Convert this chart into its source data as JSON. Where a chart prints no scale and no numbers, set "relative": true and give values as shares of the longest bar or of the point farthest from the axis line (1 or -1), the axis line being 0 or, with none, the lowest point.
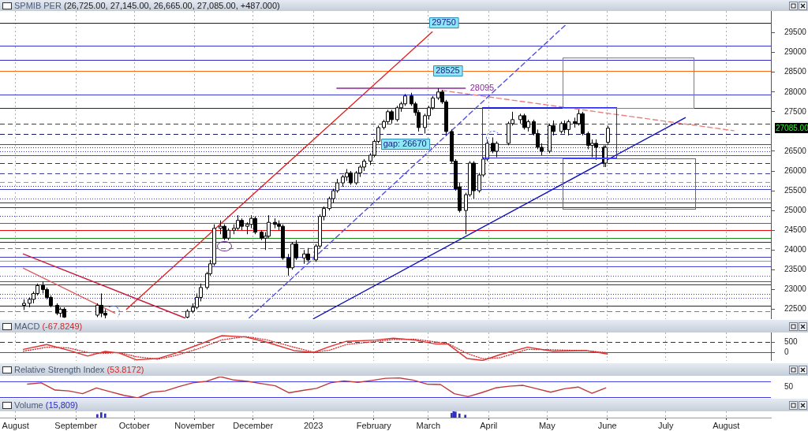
{
  "chart_data": [
    {
      "type": "candlestick",
      "title": "SPMIB PER (26,725.00, 27,145.00, 26,665.00, 27,085.00, +487.000)",
      "x": [
        "2022-08-05",
        "2022-08-08",
        "2022-08-10",
        "2022-08-12",
        "2022-08-15",
        "2022-08-17",
        "2022-08-19",
        "2022-08-22",
        "2022-08-24",
        "2022-08-26",
        "2022-09-12",
        "2022-09-14",
        "2022-09-16",
        "2022-10-28",
        "2022-10-31",
        "2022-11-02",
        "2022-11-04",
        "2022-11-07",
        "2022-11-09",
        "2022-11-11",
        "2022-11-14",
        "2022-11-16",
        "2022-11-18",
        "2022-11-21",
        "2022-11-23",
        "2022-11-25",
        "2022-11-28",
        "2022-11-30",
        "2022-12-02",
        "2022-12-05",
        "2022-12-07",
        "2022-12-09",
        "2022-12-12",
        "2022-12-14",
        "2022-12-16",
        "2022-12-19",
        "2022-12-21",
        "2022-12-23",
        "2022-12-27",
        "2022-12-29",
        "2023-01-02",
        "2023-01-04",
        "2023-01-06",
        "2023-01-09",
        "2023-01-11",
        "2023-01-13",
        "2023-01-16",
        "2023-01-18",
        "2023-01-20",
        "2023-01-23",
        "2023-01-25",
        "2023-01-27",
        "2023-01-30",
        "2023-02-01",
        "2023-02-03",
        "2023-02-06",
        "2023-02-08",
        "2023-02-10",
        "2023-02-13",
        "2023-02-15",
        "2023-02-17",
        "2023-02-20",
        "2023-02-22",
        "2023-02-24",
        "2023-02-27",
        "2023-03-01",
        "2023-03-03",
        "2023-03-06",
        "2023-03-08",
        "2023-03-10",
        "2023-03-13",
        "2023-03-15",
        "2023-03-17",
        "2023-03-20",
        "2023-03-22",
        "2023-03-24",
        "2023-03-27",
        "2023-03-29",
        "2023-03-31",
        "2023-04-03",
        "2023-04-05",
        "2023-04-11",
        "2023-04-13",
        "2023-04-17",
        "2023-04-19",
        "2023-04-21",
        "2023-04-24",
        "2023-04-26",
        "2023-04-28",
        "2023-05-02",
        "2023-05-04",
        "2023-05-08",
        "2023-05-10",
        "2023-05-12",
        "2023-05-15",
        "2023-05-17",
        "2023-05-19",
        "2023-05-22",
        "2023-05-24",
        "2023-05-26",
        "2023-05-30",
        "2023-05-31",
        "2023-06-01"
      ],
      "ohlc": [
        [
          22600,
          22750,
          22480,
          22650
        ],
        [
          22650,
          22800,
          22550,
          22750
        ],
        [
          22750,
          22950,
          22650,
          22900
        ],
        [
          22900,
          23150,
          22850,
          23100
        ],
        [
          23100,
          23200,
          22900,
          23000
        ],
        [
          23000,
          23050,
          22750,
          22800
        ],
        [
          22800,
          22850,
          22550,
          22600
        ],
        [
          22600,
          22650,
          22350,
          22400
        ],
        [
          22400,
          22550,
          22300,
          22500
        ],
        [
          22500,
          22550,
          22280,
          22300
        ],
        [
          22350,
          22650,
          22300,
          22600
        ],
        [
          22600,
          22900,
          22300,
          22400
        ],
        [
          22400,
          22500,
          22270,
          22350
        ],
        [
          22300,
          22500,
          22270,
          22450
        ],
        [
          22450,
          22650,
          22400,
          22550
        ],
        [
          22550,
          22900,
          22500,
          22800
        ],
        [
          22800,
          23150,
          22700,
          23050
        ],
        [
          23050,
          23450,
          23000,
          23400
        ],
        [
          23400,
          23750,
          23350,
          23650
        ],
        [
          23650,
          24650,
          23600,
          24550
        ],
        [
          24550,
          24750,
          24400,
          24600
        ],
        [
          24600,
          24650,
          24250,
          24300
        ],
        [
          24300,
          24550,
          24250,
          24500
        ],
        [
          24500,
          24650,
          24400,
          24550
        ],
        [
          24550,
          24880,
          24500,
          24750
        ],
        [
          24750,
          24800,
          24500,
          24600
        ],
        [
          24600,
          24700,
          24400,
          24650
        ],
        [
          24650,
          24880,
          24550,
          24800
        ],
        [
          24800,
          24850,
          24400,
          24450
        ],
        [
          24450,
          24500,
          24250,
          24300
        ],
        [
          24300,
          24450,
          24000,
          24350
        ],
        [
          24350,
          24880,
          24300,
          24700
        ],
        [
          24700,
          24800,
          24550,
          24650
        ],
        [
          24650,
          24750,
          24500,
          24600
        ],
        [
          24600,
          24650,
          23750,
          23800
        ],
        [
          23800,
          23900,
          23350,
          23550
        ],
        [
          23550,
          24200,
          23500,
          24150
        ],
        [
          24150,
          24250,
          23750,
          23800
        ],
        [
          23800,
          24000,
          23650,
          23900
        ],
        [
          23900,
          24050,
          23700,
          23750
        ],
        [
          23750,
          24150,
          23700,
          24100
        ],
        [
          24100,
          24900,
          24050,
          24850
        ],
        [
          24850,
          25100,
          24750,
          25050
        ],
        [
          25050,
          25350,
          25000,
          25300
        ],
        [
          25300,
          25550,
          25200,
          25500
        ],
        [
          25500,
          25800,
          25450,
          25700
        ],
        [
          25700,
          25900,
          25600,
          25850
        ],
        [
          25850,
          26050,
          25750,
          25950
        ],
        [
          25950,
          26000,
          25650,
          25700
        ],
        [
          25700,
          26000,
          25650,
          25950
        ],
        [
          25950,
          26150,
          25850,
          26100
        ],
        [
          26100,
          26300,
          26000,
          26250
        ],
        [
          26250,
          26450,
          26150,
          26400
        ],
        [
          26400,
          26800,
          26350,
          26750
        ],
        [
          26750,
          27150,
          26700,
          27100
        ],
        [
          27100,
          27300,
          27050,
          27250
        ],
        [
          27250,
          27550,
          27200,
          27500
        ],
        [
          27500,
          27550,
          27200,
          27300
        ],
        [
          27300,
          27650,
          27250,
          27600
        ],
        [
          27600,
          27750,
          27500,
          27700
        ],
        [
          27700,
          27950,
          27650,
          27900
        ],
        [
          27900,
          27980,
          27650,
          27700
        ],
        [
          27700,
          27750,
          27400,
          27480
        ],
        [
          27480,
          27550,
          27000,
          27100
        ],
        [
          27100,
          27450,
          26950,
          27400
        ],
        [
          27400,
          27650,
          27300,
          27600
        ],
        [
          27600,
          27900,
          27550,
          27850
        ],
        [
          27850,
          28095,
          27800,
          28000
        ],
        [
          28000,
          28050,
          27700,
          27750
        ],
        [
          27750,
          27800,
          26900,
          27000
        ],
        [
          27000,
          27050,
          26200,
          26250
        ],
        [
          26250,
          26300,
          25500,
          25550
        ],
        [
          25600,
          25700,
          24950,
          25000
        ],
        [
          25000,
          25450,
          24400,
          25400
        ],
        [
          25400,
          26250,
          25350,
          26200
        ],
        [
          26200,
          26250,
          25300,
          25500
        ],
        [
          25500,
          25950,
          25450,
          25900
        ],
        [
          25900,
          26350,
          25850,
          26300
        ],
        [
          26300,
          26800,
          26250,
          26700
        ],
        [
          26700,
          26850,
          26450,
          26500
        ],
        [
          26500,
          26750,
          26350,
          26700
        ],
        [
          26700,
          27250,
          26650,
          27200
        ],
        [
          27200,
          27500,
          27150,
          27300
        ],
        [
          27300,
          27450,
          27200,
          27400
        ],
        [
          27400,
          27450,
          27050,
          27100
        ],
        [
          27100,
          27300,
          27000,
          27250
        ],
        [
          27250,
          27300,
          26900,
          26950
        ],
        [
          26950,
          27050,
          26550,
          26600
        ],
        [
          26600,
          26700,
          26400,
          26500
        ],
        [
          26500,
          27200,
          26450,
          27150
        ],
        [
          27150,
          27280,
          26900,
          27000
        ],
        [
          27000,
          27250,
          26950,
          27200
        ],
        [
          27200,
          27280,
          26950,
          27050
        ],
        [
          27050,
          27300,
          26900,
          27250
        ],
        [
          27250,
          27350,
          27100,
          27200
        ],
        [
          27200,
          27550,
          27150,
          27450
        ],
        [
          27450,
          27500,
          26900,
          26950
        ],
        [
          26950,
          27000,
          26550,
          26650
        ],
        [
          26650,
          26800,
          26350,
          26700
        ],
        [
          26700,
          26800,
          26280,
          26600
        ],
        [
          26600,
          26650,
          26100,
          26200
        ],
        [
          26200,
          26650,
          26100,
          26598
        ],
        [
          26725,
          27145,
          26665,
          27085
        ]
      ],
      "series": [
        {
          "type": "line",
          "color": "#e02020",
          "x": [
            "2022-09-27",
            "2023-03-03"
          ],
          "values": [
            22500,
            29520
          ]
        },
        {
          "type": "line",
          "color": "#c81c3c",
          "x": [
            "2022-08-05",
            "2022-10-27"
          ],
          "values": [
            23900,
            22280
          ]
        },
        {
          "type": "line",
          "color": "#e06060",
          "x": [
            "2022-08-05",
            "2022-09-21"
          ],
          "values": [
            23540,
            22400
          ]
        },
        {
          "type": "line",
          "color": "#5050e0",
          "line_style": "dashed",
          "x": [
            "2022-11-29",
            "2023-05-11"
          ],
          "values": [
            22280,
            29720
          ]
        },
        {
          "type": "line",
          "color": "#1010b8",
          "x": [
            "2023-01-01",
            "2023-07-11"
          ],
          "values": [
            22260,
            27350
          ]
        },
        {
          "type": "line",
          "color": "#e88080",
          "line_style": "dashed",
          "x": [
            "2023-03-08",
            "2023-08-05"
          ],
          "values": [
            28040,
            27020
          ]
        },
        {
          "type": "line",
          "name": "28095",
          "color": "#8a2a9a",
          "x": [
            "2023-01-13",
            "2023-03-20"
          ],
          "values": [
            28095,
            28095
          ]
        }
      ],
      "xlim": [
        "2022-07-24",
        "2023-08-24"
      ],
      "xticks": [
        {
          "value": "2022-08-01",
          "label": null
        },
        {
          "value": "2022-09-01",
          "label": null
        },
        {
          "value": "2022-10-01",
          "label": null
        },
        {
          "value": "2022-11-01",
          "label": null
        },
        {
          "value": "2022-12-01",
          "label": null
        },
        {
          "value": "2023-01-01",
          "label": null
        },
        {
          "value": "2023-02-01",
          "label": null
        },
        {
          "value": "2023-03-01",
          "label": null
        },
        {
          "value": "2023-04-01",
          "label": null
        },
        {
          "value": "2023-05-01",
          "label": null
        },
        {
          "value": "2023-06-01",
          "label": null
        },
        {
          "value": "2023-07-01",
          "label": null
        },
        {
          "value": "2023-08-01",
          "label": null
        }
      ],
      "ylim": [
        22250,
        30050
      ],
      "yticks": [
        22500,
        23000,
        23500,
        24000,
        24500,
        25000,
        25500,
        26000,
        26500,
        27500,
        28000,
        28500,
        29000,
        29500
      ],
      "tick_labels": "y",
      "grid": "x",
      "ref_lines": [
        {
          "axis": "y",
          "value": 29750,
          "color": "#1e1e1e"
        },
        {
          "axis": "y",
          "value": 29170,
          "color": "#3333cc"
        },
        {
          "axis": "y",
          "value": 28815,
          "color": "#2c2cc4"
        },
        {
          "axis": "y",
          "value": 28525,
          "color": "#ff6a1a"
        },
        {
          "axis": "y",
          "value": 27935,
          "color": "#3a3ad4"
        },
        {
          "axis": "y",
          "value": 27600,
          "color": "#4b0a5a"
        },
        {
          "axis": "y",
          "value": 27205,
          "color": "#3333aa",
          "line_style": "dashed"
        },
        {
          "axis": "y",
          "value": 26945,
          "color": "#1a1a66",
          "line_style": "dashed"
        },
        {
          "axis": "y",
          "value": 26670,
          "color": "#9a209a"
        },
        {
          "axis": "y",
          "value": 26590,
          "color": "#2c2ca4",
          "line_style": "dotted"
        },
        {
          "axis": "y",
          "value": 26505,
          "color": "#3a3ab2",
          "line_style": "dotted"
        },
        {
          "axis": "y",
          "value": 26390,
          "color": "#f81818"
        },
        {
          "axis": "y",
          "value": 26195,
          "color": "#2828c0",
          "line_style": "dashed"
        },
        {
          "axis": "y",
          "value": 25935,
          "color": "#40409a",
          "line_style": "dashed"
        },
        {
          "axis": "y",
          "value": 25720,
          "color": "#66bb66",
          "line_style": "dashed"
        },
        {
          "axis": "y",
          "value": 25620,
          "color": "#262698",
          "line_style": "dotted"
        },
        {
          "axis": "y",
          "value": 25540,
          "color": "#4242cc"
        },
        {
          "axis": "y",
          "value": 25305,
          "color": "#4848b8",
          "line_style": "dotted"
        },
        {
          "axis": "y",
          "value": 25200,
          "color": "#2424d8"
        },
        {
          "axis": "y",
          "value": 25080,
          "color": "#7a1a1a"
        },
        {
          "axis": "y",
          "value": 24860,
          "color": "#30308c",
          "line_style": "dotted"
        },
        {
          "axis": "y",
          "value": 24690,
          "color": "#d83030"
        },
        {
          "axis": "y",
          "value": 24505,
          "color": "#ee0a0a"
        },
        {
          "axis": "y",
          "value": 24305,
          "color": "#1a8a1a"
        },
        {
          "axis": "y",
          "value": 24205,
          "color": "#2e2e2e"
        },
        {
          "axis": "y",
          "value": 24045,
          "color": "#6666dd",
          "line_style": "dashed"
        },
        {
          "axis": "y",
          "value": 23825,
          "color": "#3c3cbc"
        },
        {
          "axis": "y",
          "value": 23720,
          "color": "#ff7722"
        },
        {
          "axis": "y",
          "value": 23595,
          "color": "#4646d8"
        },
        {
          "axis": "y",
          "value": 23355,
          "color": "#505090",
          "line_style": "dotted"
        },
        {
          "axis": "y",
          "value": 23205,
          "color": "#cc2a2a"
        },
        {
          "axis": "y",
          "value": 23125,
          "color": "#3a3a3a"
        },
        {
          "axis": "y",
          "value": 22895,
          "color": "#36369e",
          "line_style": "dotted"
        },
        {
          "axis": "y",
          "value": 22785,
          "color": "#4444a8",
          "line_style": "dotted"
        },
        {
          "axis": "y",
          "value": 22595,
          "color": "#262626"
        },
        {
          "axis": "y",
          "value": 22440,
          "color": "#7070e4",
          "line_style": "dashed"
        }
      ],
      "annotations": [
        {
          "text": "29750",
          "x": "2023-03-09",
          "y": 29750
        },
        {
          "text": "28525",
          "x": "2023-03-11",
          "y": 28525
        },
        {
          "text": "gap: 26670",
          "x": "2023-02-17",
          "y": 26670
        },
        "27085.00"
      ]
    },
    {
      "type": "line",
      "title": "MACD (-67.8249)",
      "series": [
        {
          "color": "#e03030",
          "x": [
            "2022-08-05",
            "2022-08-17",
            "2022-08-28",
            "2022-09-07",
            "2022-09-16",
            "2022-09-23",
            "2022-10-02",
            "2022-10-13",
            "2022-10-22",
            "2022-11-02",
            "2022-11-15",
            "2022-11-27",
            "2022-12-08",
            "2022-12-22",
            "2023-01-01",
            "2023-01-09",
            "2023-01-18",
            "2023-02-02",
            "2023-02-11",
            "2023-02-22",
            "2023-03-05",
            "2023-03-11",
            "2023-03-21",
            "2023-03-29",
            "2023-04-07",
            "2023-04-21",
            "2023-05-04",
            "2023-05-21",
            "2023-06-01"
          ],
          "values": [
            150,
            380,
            110,
            -170,
            50,
            -20,
            -350,
            -290,
            -40,
            340,
            800,
            740,
            490,
            90,
            0,
            270,
            530,
            590,
            680,
            590,
            400,
            400,
            -290,
            -380,
            -100,
            250,
            60,
            90,
            -70
          ]
        },
        {
          "color": "#d83838",
          "line_style": "dotted",
          "x": [
            "2022-08-05",
            "2022-08-17",
            "2022-08-28",
            "2022-09-07",
            "2022-09-16",
            "2022-09-23",
            "2022-10-02",
            "2022-10-13",
            "2022-10-22",
            "2022-11-02",
            "2022-11-15",
            "2022-11-27",
            "2022-12-08",
            "2022-12-22",
            "2023-01-01",
            "2023-01-09",
            "2023-01-18",
            "2023-02-02",
            "2023-02-11",
            "2023-02-22",
            "2023-03-05",
            "2023-03-11",
            "2023-03-21",
            "2023-03-29",
            "2023-04-07",
            "2023-04-21",
            "2023-05-04",
            "2023-05-21",
            "2023-06-01"
          ],
          "values": [
            60,
            250,
            220,
            0,
            -40,
            0,
            -200,
            -320,
            -150,
            150,
            600,
            760,
            600,
            250,
            20,
            100,
            380,
            520,
            620,
            630,
            500,
            430,
            -50,
            -300,
            -250,
            150,
            130,
            80,
            -10
          ]
        }
      ],
      "xlim": [
        "2022-07-24",
        "2023-08-24"
      ],
      "xticks": [
        {
          "value": "2022-08-01",
          "label": null
        },
        {
          "value": "2022-09-01",
          "label": null
        },
        {
          "value": "2022-10-01",
          "label": null
        },
        {
          "value": "2022-11-01",
          "label": null
        },
        {
          "value": "2022-12-01",
          "label": null
        },
        {
          "value": "2023-01-01",
          "label": null
        },
        {
          "value": "2023-02-01",
          "label": null
        },
        {
          "value": "2023-03-01",
          "label": null
        },
        {
          "value": "2023-04-01",
          "label": null
        },
        {
          "value": "2023-05-01",
          "label": null
        },
        {
          "value": "2023-06-01",
          "label": null
        },
        {
          "value": "2023-07-01",
          "label": null
        },
        {
          "value": "2023-08-01",
          "label": null
        }
      ],
      "ylim": [
        -400,
        950
      ],
      "yticks": [
        0,
        500
      ],
      "tick_labels": "y",
      "grid": "x",
      "ref_lines": [
        {
          "axis": "y",
          "value": 500,
          "color": "#333333",
          "line_style": "dashed"
        },
        {
          "axis": "y",
          "value": 0,
          "color": "#4444ee"
        }
      ]
    },
    {
      "type": "line",
      "title": "Relative Strength Index (53.8172)",
      "relative": true,
      "categories": [
        null,
        null,
        null,
        null,
        null,
        null,
        null,
        null,
        null,
        null,
        null,
        null,
        null,
        null,
        null,
        null,
        null,
        null,
        null,
        null,
        null,
        null,
        null,
        null,
        null,
        null,
        null,
        null,
        null,
        null,
        null,
        null,
        null,
        null,
        null,
        null,
        null,
        null,
        null,
        null,
        null,
        null,
        null,
        null,
        null,
        null,
        null,
        null,
        null,
        null,
        null,
        null,
        null,
        null,
        null,
        null,
        null
      ],
      "series": [
        {
          "color": "#c03838",
          "values": [
            null,
            null,
            0.65,
            0.71,
            0.37,
            0.33,
            0.2,
            0.47,
            0.29,
            0.12,
            0,
            0.27,
            0.33,
            0.53,
            0.71,
            0.78,
            1,
            0.84,
            0.78,
            0.67,
            0.57,
            0.24,
            0.35,
            0.45,
            0.71,
            0.8,
            0.73,
            0.82,
            0.92,
            0.94,
            0.84,
            0.65,
            0.63,
            0.2,
            0.06,
            0.25,
            0.47,
            0.55,
            0.59,
            0.43,
            0.27,
            0.43,
            0.51,
            0.22,
            0.47,
            null,
            null,
            null,
            null,
            null,
            null,
            null,
            null,
            null,
            null,
            null,
            null
          ]
        }
      ],
      "tick_labels": false,
      "ref_lines": [
        {
          "axis": "y",
          "value": 0.78,
          "color": "#4444ee"
        },
        {
          "axis": "y",
          "value": 0,
          "color": "#3a3ae0"
        }
      ],
      "annotations": [
        "50"
      ]
    },
    {
      "type": "bar",
      "title": "Volume (15,809)",
      "relative": true,
      "color": "#3030c0",
      "x": [
        "2022-09-12",
        "2022-09-14",
        "2022-09-16",
        "2023-03-13",
        "2023-03-14",
        "2023-03-15",
        "2023-03-17",
        "2023-03-20"
      ],
      "values": [
        0.5,
        0.8,
        0.6,
        0.7,
        1,
        0.9,
        0.6,
        0.4
      ],
      "xlim": [
        "2022-07-24",
        "2023-08-24"
      ],
      "xticks": [
        {
          "value": "2022-08-01",
          "label": "August"
        },
        {
          "value": "2022-09-01",
          "label": "September"
        },
        {
          "value": "2022-10-01",
          "label": "October"
        },
        {
          "value": "2022-11-01",
          "label": "November"
        },
        {
          "value": "2022-12-01",
          "label": "December"
        },
        {
          "value": "2023-01-01",
          "label": "2023"
        },
        {
          "value": "2023-02-01",
          "label": "February"
        },
        {
          "value": "2023-03-01",
          "label": "March"
        },
        {
          "value": "2023-04-01",
          "label": "April"
        },
        {
          "value": "2023-05-01",
          "label": "May"
        },
        {
          "value": "2023-06-01",
          "label": "June"
        },
        {
          "value": "2023-07-01",
          "label": "July"
        },
        {
          "value": "2023-08-01",
          "label": "August"
        }
      ],
      "tick_labels": "x",
      "grid": "x"
    }
  ]
}
